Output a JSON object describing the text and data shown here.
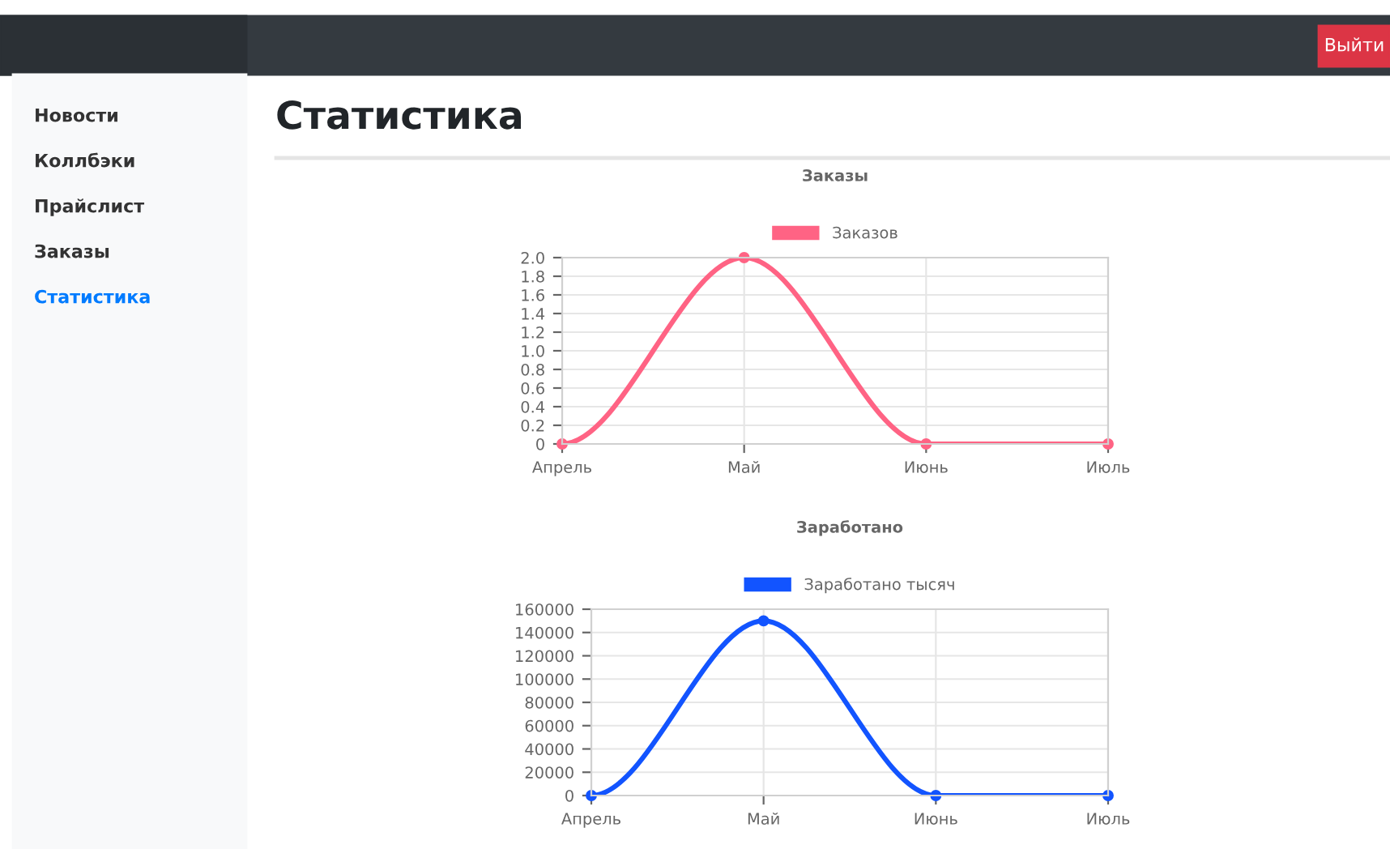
{
  "chart_data": [
    {
      "type": "other",
      "title": "Статистика",
      "annotations": [
        "Новости",
        "Коллбэки",
        "Прайслист",
        "Заказы",
        "Статистика",
        "Выйти"
      ]
    },
    {
      "type": "line",
      "title": "Заказы",
      "categories": [
        "Апрель",
        "Май",
        "Июнь",
        "Июль"
      ],
      "series": [
        {
          "name": "Заказов",
          "color": "#ff6384",
          "values": [
            0,
            2,
            0,
            0
          ]
        }
      ],
      "ylim": [
        0,
        2
      ],
      "yticks": [
        {
          "value": 0,
          "label": "0"
        },
        0.2,
        0.4,
        0.6,
        0.8,
        {
          "value": 1,
          "label": "1.0"
        },
        1.2,
        1.4,
        1.6,
        1.8,
        {
          "value": 2,
          "label": "2.0"
        }
      ],
      "grid": true,
      "legend": "top",
      "marker": "circle",
      "line_style": "solid"
    },
    {
      "type": "line",
      "title": "Заработано",
      "categories": [
        "Апрель",
        "Май",
        "Июнь",
        "Июль"
      ],
      "series": [
        {
          "name": "Заработано тысяч",
          "color": "#1254ff",
          "values": [
            0,
            150000,
            0,
            0
          ]
        }
      ],
      "ylim": [
        0,
        160000
      ],
      "yticks": [
        0,
        20000,
        40000,
        60000,
        80000,
        100000,
        120000,
        140000,
        160000
      ],
      "grid": true,
      "legend": "top",
      "marker": "circle",
      "line_style": "solid"
    }
  ]
}
